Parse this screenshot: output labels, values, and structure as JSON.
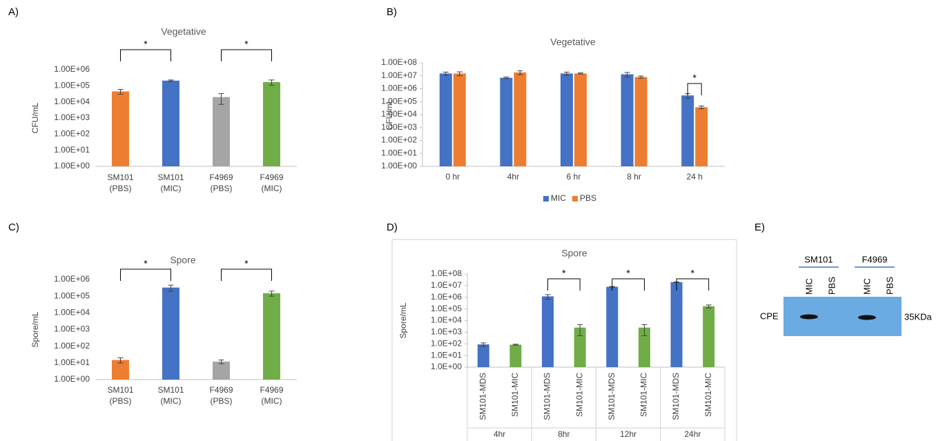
{
  "chart_data": [
    {
      "type": "bar",
      "label": "A)",
      "title": "Vegetative",
      "y_label": "CFU/mL",
      "y_scale": "log",
      "categories": [
        [
          "SM101",
          "(PBS)"
        ],
        [
          "SM101",
          "(MIC)"
        ],
        [
          "F4969",
          "(PBS)"
        ],
        [
          "F4969",
          "(MIC)"
        ]
      ],
      "values": [
        45000,
        210000,
        20000,
        170000
      ],
      "errors": [
        15000,
        20000,
        13000,
        60000
      ],
      "colors": [
        "#ed7d31",
        "#4472c4",
        "#a5a5a5",
        "#70ad47"
      ],
      "ylim": [
        1,
        1000000
      ],
      "yticks": [
        {
          "value": 1,
          "label": "1.00E+00"
        },
        {
          "value": 10,
          "label": "1.00E+01"
        },
        {
          "value": 100,
          "label": "1.00E+02"
        },
        {
          "value": 1000,
          "label": "1.00E+03"
        },
        {
          "value": 10000,
          "label": "1.00E+04"
        },
        {
          "value": 100000,
          "label": "1.00E+05"
        },
        {
          "value": 1000000,
          "label": "1.00E+06"
        }
      ],
      "brackets": [
        {
          "label": "*",
          "from": 0,
          "to": 1
        },
        {
          "label": "*",
          "from": 2,
          "to": 3
        }
      ]
    },
    {
      "type": "grouped_bar",
      "label": "B)",
      "title": "Vegetative",
      "y_label": "CFU/mL",
      "y_scale": "log",
      "y_axis_line": true,
      "categories": [
        "0 hr",
        "4hr",
        "6 hr",
        "8 hr",
        "24 h"
      ],
      "series": [
        {
          "name": "MIC",
          "color": "#4472c4",
          "values": [
            15000000,
            7000000,
            15000000,
            13000000,
            300000
          ],
          "errors": [
            4000000,
            1000000,
            4000000,
            5000000,
            120000
          ]
        },
        {
          "name": "PBS",
          "color": "#ed7d31",
          "values": [
            15000000,
            18000000,
            15000000,
            8000000,
            37000
          ],
          "errors": [
            5000000,
            6000000,
            1500000,
            1500000,
            9000
          ]
        }
      ],
      "ylim": [
        1,
        100000000
      ],
      "yticks": [
        {
          "value": 1,
          "label": "1.00E+00"
        },
        {
          "value": 10,
          "label": "1.00E+01"
        },
        {
          "value": 100,
          "label": "1.00E+02"
        },
        {
          "value": 1000,
          "label": "1.00E+03"
        },
        {
          "value": 10000,
          "label": "1.00E+04"
        },
        {
          "value": 100000,
          "label": "1.00E+05"
        },
        {
          "value": 1000000,
          "label": "1.00E+06"
        },
        {
          "value": 10000000,
          "label": "1.00E+07"
        },
        {
          "value": 100000000,
          "label": "1.00E+08"
        }
      ],
      "legend": "bottom",
      "brackets": [
        {
          "label": "*",
          "category": 4
        }
      ]
    },
    {
      "type": "bar",
      "label": "C)",
      "title": "Spore",
      "y_label": "Spore/mL",
      "y_scale": "log",
      "categories": [
        [
          "SM101",
          "(PBS)"
        ],
        [
          "SM101",
          "(MIC)"
        ],
        [
          "F4969",
          "(PBS)"
        ],
        [
          "F4969",
          "(MIC)"
        ]
      ],
      "values": [
        15,
        330000,
        12,
        150000
      ],
      "errors": [
        5,
        130000,
        3,
        50000
      ],
      "colors": [
        "#ed7d31",
        "#4472c4",
        "#a5a5a5",
        "#70ad47"
      ],
      "ylim": [
        1,
        1000000
      ],
      "yticks": [
        {
          "value": 1,
          "label": "1.00E+00"
        },
        {
          "value": 10,
          "label": "1.00E+01"
        },
        {
          "value": 100,
          "label": "1.00E+02"
        },
        {
          "value": 1000,
          "label": "1.00E+03"
        },
        {
          "value": 10000,
          "label": "1.00E+04"
        },
        {
          "value": 100000,
          "label": "1.00E+05"
        },
        {
          "value": 1000000,
          "label": "1.00E+06"
        }
      ],
      "brackets": [
        {
          "label": "*",
          "from": 0,
          "to": 1
        },
        {
          "label": "*",
          "from": 2,
          "to": 3
        }
      ]
    },
    {
      "type": "nested_bar",
      "label": "D)",
      "title": "Spore",
      "y_label": "Spore/mL",
      "y_scale": "log",
      "y_axis_line": true,
      "border": true,
      "groups": [
        "4hr",
        "8hr",
        "12hr",
        "24hr"
      ],
      "categories": [
        "SM101-MDS",
        "SM101-MIC",
        "SM101-MDS",
        "SM101-MIC",
        "SM101-MDS",
        "SM101-MIC",
        "SM101-MDS",
        "SM101-MIC"
      ],
      "values": [
        90,
        85,
        1200000,
        2500,
        8000000,
        2500,
        20000000,
        170000
      ],
      "errors": [
        30,
        8,
        500000,
        2000,
        500000,
        2000,
        1000000,
        50000
      ],
      "colors": [
        "#4472c4",
        "#70ad47",
        "#4472c4",
        "#70ad47",
        "#4472c4",
        "#70ad47",
        "#4472c4",
        "#70ad47"
      ],
      "ylim": [
        1,
        100000000
      ],
      "yticks": [
        {
          "value": 1,
          "label": "1.0E+00"
        },
        {
          "value": 10,
          "label": "1.0E+01"
        },
        {
          "value": 100,
          "label": "1.0E+02"
        },
        {
          "value": 1000,
          "label": "1.0E+03"
        },
        {
          "value": 10000,
          "label": "1.0E+04"
        },
        {
          "value": 100000,
          "label": "1.0E+05"
        },
        {
          "value": 1000000,
          "label": "1.0E+06"
        },
        {
          "value": 10000000,
          "label": "1.0E+07"
        },
        {
          "value": 100000000,
          "label": "1.0E+08"
        }
      ],
      "brackets": [
        {
          "label": "*",
          "from": 2,
          "to": 3
        },
        {
          "label": "*",
          "from": 4,
          "to": 5
        },
        {
          "label": "*",
          "from": 6,
          "to": 7
        }
      ]
    }
  ],
  "blot": {
    "label": "E)",
    "groups": [
      {
        "name": "SM101",
        "lanes": [
          "MIC",
          "PBS"
        ]
      },
      {
        "name": "F4969",
        "lanes": [
          "MIC",
          "PBS"
        ]
      }
    ],
    "row_label": "CPE",
    "size_label": "35KDa"
  }
}
